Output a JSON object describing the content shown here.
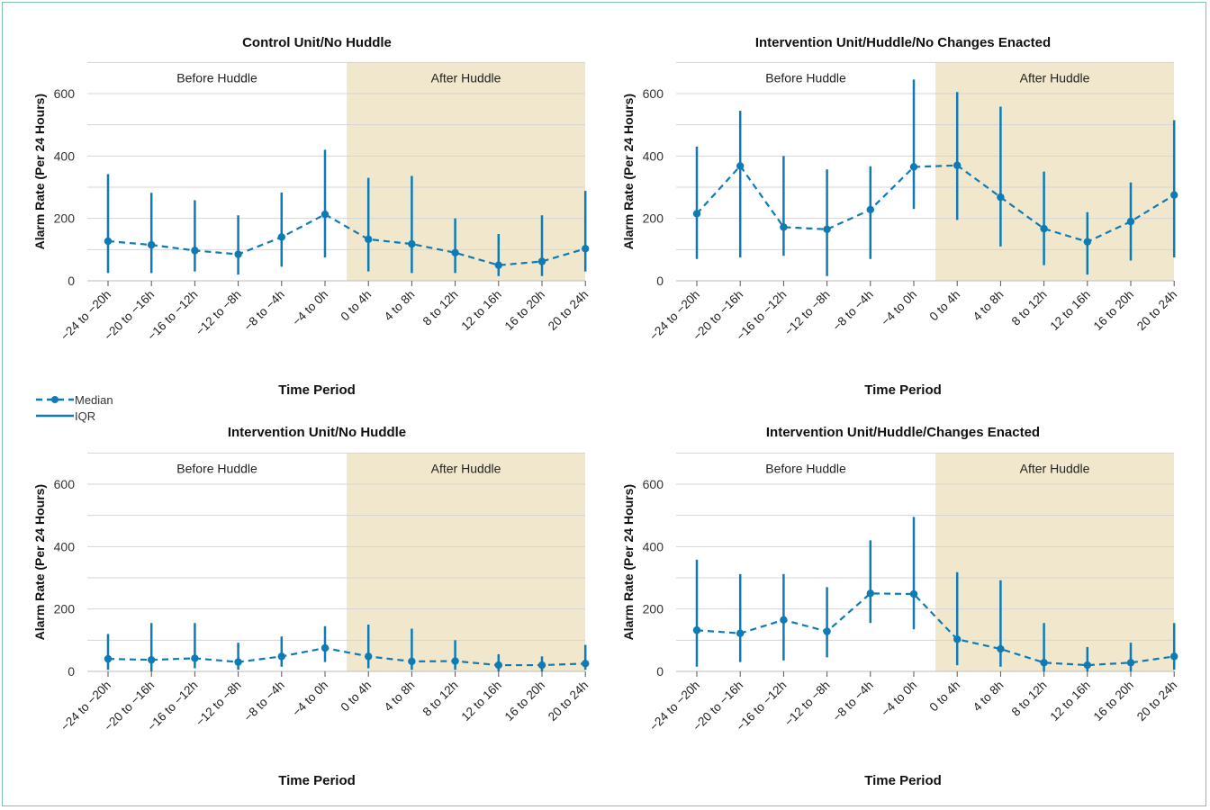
{
  "colors": {
    "series": "#0e7bb5",
    "shade": "#f1e7cc",
    "grid": "#d5d5d5",
    "axis": "#555555"
  },
  "legend": {
    "median_label": "Median",
    "iqr_label": "IQR"
  },
  "chart_data": [
    {
      "type": "line",
      "title": "Control Unit/No Huddle",
      "xlabel": "Time Period",
      "ylabel": "Alarm Rate (Per 24 Hours)",
      "ylim": [
        0,
        700
      ],
      "yticks": [
        0,
        200,
        400,
        600
      ],
      "grid": "horizontal",
      "regions": [
        {
          "label": "Before Huddle",
          "shaded": false
        },
        {
          "label": "After Huddle",
          "shaded": true
        }
      ],
      "categories": [
        "−24 to −20h",
        "−20 to −16h",
        "−16 to −12h",
        "−12 to −8h",
        "−8 to −4h",
        "−4 to 0h",
        "0 to 4h",
        "4 to 8h",
        "8 to 12h",
        "12 to 16h",
        "16 to 20h",
        "20 to 24h"
      ],
      "x": [
        -22,
        -18,
        -14,
        -10,
        -6,
        -2,
        2,
        6,
        10,
        14,
        18,
        22
      ],
      "series": [
        {
          "name": "Median",
          "values": [
            127,
            115,
            97,
            85,
            140,
            213,
            133,
            118,
            90,
            50,
            62,
            103
          ]
        },
        {
          "name": "IQR",
          "low": [
            25,
            25,
            30,
            20,
            45,
            75,
            30,
            25,
            25,
            15,
            15,
            30
          ],
          "high": [
            342,
            282,
            258,
            210,
            283,
            420,
            330,
            336,
            200,
            150,
            210,
            288
          ]
        }
      ]
    },
    {
      "type": "line",
      "title": "Intervention Unit/Huddle/No Changes Enacted",
      "xlabel": "Time Period",
      "ylabel": "Alarm Rate (Per 24 Hours)",
      "ylim": [
        0,
        700
      ],
      "yticks": [
        0,
        200,
        400,
        600
      ],
      "grid": "horizontal",
      "regions": [
        {
          "label": "Before Huddle",
          "shaded": false
        },
        {
          "label": "After Huddle",
          "shaded": true
        }
      ],
      "categories": [
        "−24 to −20h",
        "−20 to −16h",
        "−16 to −12h",
        "−12 to −8h",
        "−8 to −4h",
        "−4 to 0h",
        "0 to 4h",
        "4 to 8h",
        "8 to 12h",
        "12 to 16h",
        "16 to 20h",
        "20 to 24h"
      ],
      "x": [
        -22,
        -18,
        -14,
        -10,
        -6,
        -2,
        2,
        6,
        10,
        14,
        18,
        22
      ],
      "series": [
        {
          "name": "Median",
          "values": [
            215,
            368,
            172,
            165,
            228,
            365,
            370,
            268,
            167,
            125,
            190,
            275
          ]
        },
        {
          "name": "IQR",
          "low": [
            70,
            75,
            80,
            15,
            70,
            230,
            195,
            110,
            50,
            20,
            65,
            75
          ],
          "high": [
            430,
            545,
            400,
            357,
            367,
            645,
            605,
            558,
            350,
            220,
            315,
            515
          ]
        }
      ]
    },
    {
      "type": "line",
      "title": "Intervention Unit/No Huddle",
      "xlabel": "Time Period",
      "ylabel": "Alarm Rate (Per 24 Hours)",
      "ylim": [
        0,
        700
      ],
      "yticks": [
        0,
        200,
        400,
        600
      ],
      "grid": "horizontal",
      "regions": [
        {
          "label": "Before Huddle",
          "shaded": false
        },
        {
          "label": "After Huddle",
          "shaded": true
        }
      ],
      "categories": [
        "−24 to −20h",
        "−20 to −16h",
        "−16 to −12h",
        "−12 to −8h",
        "−8 to −4h",
        "−4 to 0h",
        "0 to 4h",
        "4 to 8h",
        "8 to 12h",
        "12 to 16h",
        "16 to 20h",
        "20 to 24h"
      ],
      "x": [
        -22,
        -18,
        -14,
        -10,
        -6,
        -2,
        2,
        6,
        10,
        14,
        18,
        22
      ],
      "series": [
        {
          "name": "Median",
          "values": [
            40,
            37,
            42,
            30,
            48,
            75,
            48,
            32,
            33,
            20,
            20,
            25
          ]
        },
        {
          "name": "IQR",
          "low": [
            5,
            0,
            10,
            5,
            15,
            30,
            10,
            5,
            5,
            0,
            0,
            5
          ],
          "high": [
            120,
            155,
            155,
            92,
            112,
            145,
            150,
            137,
            100,
            55,
            48,
            85
          ]
        }
      ]
    },
    {
      "type": "line",
      "title": "Intervention Unit/Huddle/Changes Enacted",
      "xlabel": "Time Period",
      "ylabel": "Alarm Rate (Per 24 Hours)",
      "ylim": [
        0,
        700
      ],
      "yticks": [
        0,
        200,
        400,
        600
      ],
      "grid": "horizontal",
      "regions": [
        {
          "label": "Before Huddle",
          "shaded": false
        },
        {
          "label": "After Huddle",
          "shaded": true
        }
      ],
      "categories": [
        "−24 to −20h",
        "−20 to −16h",
        "−16 to −12h",
        "−12 to −8h",
        "−8 to −4h",
        "−4 to 0h",
        "0 to 4h",
        "4 to 8h",
        "8 to 12h",
        "12 to 16h",
        "16 to 20h",
        "20 to 24h"
      ],
      "x": [
        -22,
        -18,
        -14,
        -10,
        -6,
        -2,
        2,
        6,
        10,
        14,
        18,
        22
      ],
      "series": [
        {
          "name": "Median",
          "values": [
            132,
            122,
            165,
            128,
            250,
            248,
            103,
            72,
            28,
            20,
            28,
            48
          ]
        },
        {
          "name": "IQR",
          "low": [
            15,
            30,
            35,
            45,
            155,
            135,
            20,
            15,
            0,
            0,
            0,
            5
          ],
          "high": [
            358,
            312,
            312,
            270,
            420,
            495,
            318,
            292,
            155,
            78,
            92,
            155
          ]
        }
      ]
    }
  ]
}
